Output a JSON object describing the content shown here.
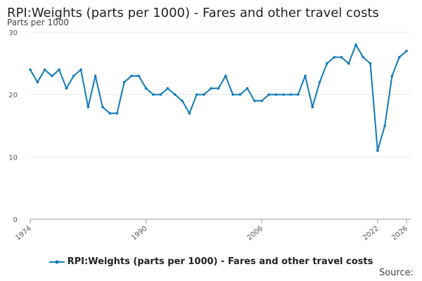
{
  "page": {
    "title": "RPI:Weights (parts per 1000) - Fares and other travel costs",
    "y_unit": "Parts per 1000",
    "source_label": "Source:"
  },
  "colors": {
    "series": "#0f7ab8",
    "grid": "#e6e6e6",
    "axis": "#999999"
  },
  "chart_data": {
    "type": "line",
    "title": "RPI:Weights (parts per 1000) - Fares and other travel costs",
    "ylabel": "Parts per 1000",
    "xlabel": "",
    "ylim": [
      0,
      30
    ],
    "y_ticks": [
      0,
      10,
      20,
      30
    ],
    "x_tick_labels": [
      "1974",
      "1990",
      "2006",
      "2022",
      "2026"
    ],
    "grid": "horizontal",
    "legend": "bottom",
    "series": [
      {
        "name": "RPI:Weights (parts per 1000) - Fares and other travel costs",
        "x": [
          1974,
          1975,
          1976,
          1977,
          1978,
          1979,
          1980,
          1981,
          1982,
          1983,
          1984,
          1985,
          1986,
          1987,
          1988,
          1989,
          1990,
          1991,
          1992,
          1993,
          1994,
          1995,
          1996,
          1997,
          1998,
          1999,
          2000,
          2001,
          2002,
          2003,
          2004,
          2005,
          2006,
          2007,
          2008,
          2009,
          2010,
          2011,
          2012,
          2013,
          2014,
          2015,
          2016,
          2017,
          2018,
          2019,
          2020,
          2021,
          2022,
          2023,
          2024,
          2025,
          2026
        ],
        "values": [
          24,
          22,
          24,
          23,
          24,
          21,
          23,
          24,
          18,
          23,
          18,
          17,
          17,
          22,
          23,
          23,
          21,
          20,
          20,
          21,
          20,
          19,
          17,
          20,
          20,
          21,
          21,
          23,
          20,
          20,
          21,
          19,
          19,
          20,
          20,
          20,
          20,
          20,
          23,
          18,
          22,
          25,
          26,
          26,
          25,
          28,
          26,
          25,
          11,
          15,
          23,
          26,
          27
        ]
      }
    ]
  }
}
